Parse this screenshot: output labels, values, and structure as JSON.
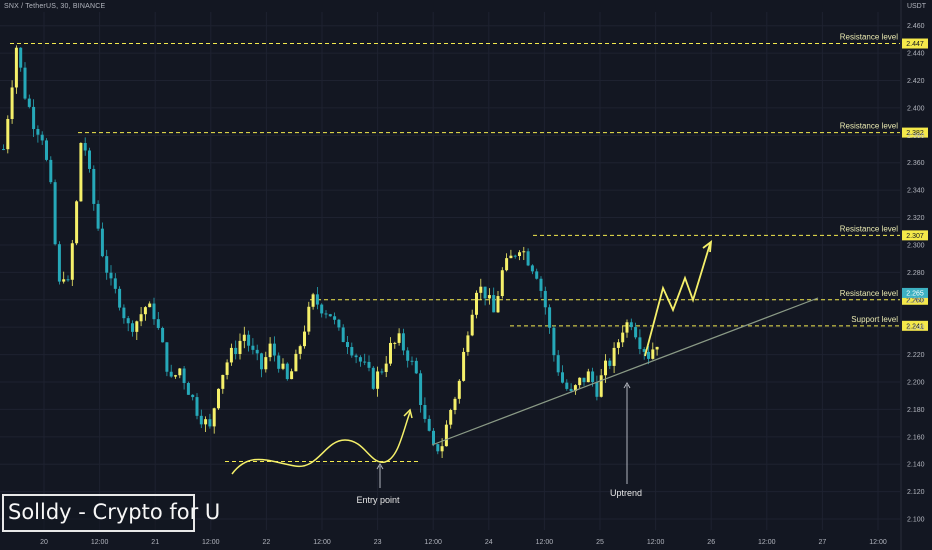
{
  "header": {
    "symbol": "SNX / TetherUS, 30, BINANCE",
    "currency": "USDT"
  },
  "watermark": "Solldy - Crypto for U",
  "colors": {
    "background": "#131722",
    "grid": "#1e2230",
    "candle_up": "#f5f06a",
    "candle_down": "#26a8b8",
    "dashed_level": "#f2e94e",
    "trendline": "#8a9a86",
    "text": "#b2b5be",
    "label_text": "#e8e8b0"
  },
  "chart_data": {
    "type": "candlestick",
    "x_ticks": [
      "20",
      "12:00",
      "21",
      "12:00",
      "22",
      "12:00",
      "23",
      "12:00",
      "24",
      "12:00",
      "25",
      "12:00",
      "26",
      "12:00",
      "27",
      "12:00"
    ],
    "y_ticks": [
      2.1,
      2.12,
      2.14,
      2.16,
      2.18,
      2.2,
      2.22,
      2.24,
      2.26,
      2.28,
      2.3,
      2.32,
      2.34,
      2.36,
      2.38,
      2.4,
      2.42,
      2.44,
      2.46
    ],
    "y_range": [
      2.092,
      2.47
    ],
    "grid": true,
    "price_path": [
      [
        0,
        2.37
      ],
      [
        2,
        2.42
      ],
      [
        3,
        2.445
      ],
      [
        5,
        2.41
      ],
      [
        7,
        2.39
      ],
      [
        9,
        2.38
      ],
      [
        11,
        2.34
      ],
      [
        12,
        2.3
      ],
      [
        13,
        2.27
      ],
      [
        14,
        2.28
      ],
      [
        15,
        2.27
      ],
      [
        17,
        2.33
      ],
      [
        18,
        2.375
      ],
      [
        19,
        2.37
      ],
      [
        21,
        2.33
      ],
      [
        23,
        2.295
      ],
      [
        25,
        2.27
      ],
      [
        27,
        2.26
      ],
      [
        29,
        2.24
      ],
      [
        31,
        2.245
      ],
      [
        33,
        2.255
      ],
      [
        35,
        2.25
      ],
      [
        37,
        2.225
      ],
      [
        39,
        2.2
      ],
      [
        41,
        2.21
      ],
      [
        43,
        2.195
      ],
      [
        45,
        2.18
      ],
      [
        47,
        2.17
      ],
      [
        48,
        2.165
      ],
      [
        50,
        2.2
      ],
      [
        52,
        2.215
      ],
      [
        54,
        2.225
      ],
      [
        56,
        2.235
      ],
      [
        58,
        2.22
      ],
      [
        60,
        2.21
      ],
      [
        62,
        2.225
      ],
      [
        64,
        2.215
      ],
      [
        66,
        2.2
      ],
      [
        68,
        2.215
      ],
      [
        70,
        2.24
      ],
      [
        72,
        2.26
      ],
      [
        74,
        2.255
      ],
      [
        76,
        2.25
      ],
      [
        78,
        2.235
      ],
      [
        80,
        2.23
      ],
      [
        82,
        2.22
      ],
      [
        84,
        2.21
      ],
      [
        86,
        2.2
      ],
      [
        88,
        2.21
      ],
      [
        90,
        2.225
      ],
      [
        92,
        2.23
      ],
      [
        94,
        2.22
      ],
      [
        96,
        2.205
      ],
      [
        98,
        2.17
      ],
      [
        100,
        2.15
      ],
      [
        102,
        2.155
      ],
      [
        104,
        2.18
      ],
      [
        106,
        2.2
      ],
      [
        108,
        2.24
      ],
      [
        110,
        2.27
      ],
      [
        112,
        2.265
      ],
      [
        114,
        2.25
      ],
      [
        116,
        2.28
      ],
      [
        118,
        2.29
      ],
      [
        120,
        2.3
      ],
      [
        122,
        2.29
      ],
      [
        124,
        2.28
      ],
      [
        126,
        2.255
      ],
      [
        128,
        2.22
      ],
      [
        130,
        2.2
      ],
      [
        132,
        2.19
      ],
      [
        134,
        2.2
      ],
      [
        136,
        2.205
      ],
      [
        138,
        2.195
      ],
      [
        140,
        2.21
      ],
      [
        142,
        2.22
      ],
      [
        144,
        2.24
      ],
      [
        146,
        2.245
      ],
      [
        148,
        2.23
      ],
      [
        150,
        2.22
      ],
      [
        152,
        2.23
      ]
    ],
    "levels": [
      {
        "label": "Resistance level",
        "value": 2.447
      },
      {
        "label": "Resistance level",
        "value": 2.382
      },
      {
        "label": "Resistance level",
        "value": 2.307
      },
      {
        "label": "Resistance level",
        "value": 2.26
      },
      {
        "label": "Support level",
        "value": 2.241
      }
    ],
    "current_price": 2.265,
    "annotations": {
      "entry_point": "Entry point",
      "uptrend": "Uptrend"
    }
  }
}
